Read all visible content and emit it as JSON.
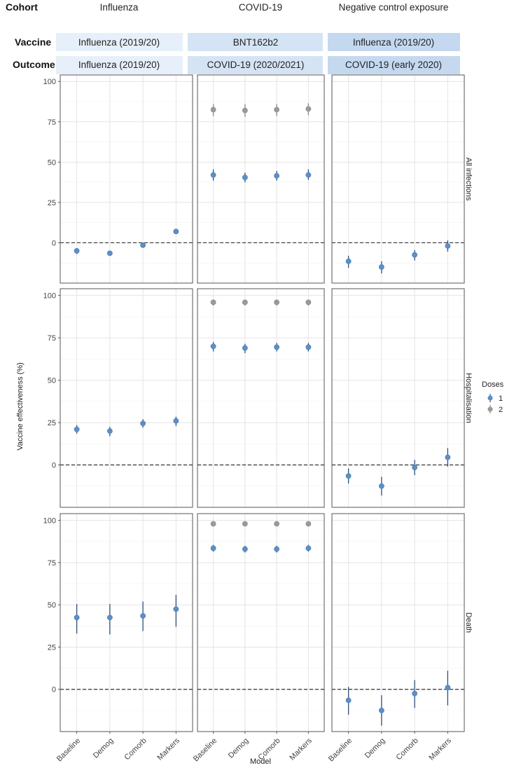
{
  "header": {
    "cohort_label": "Cohort",
    "vaccine_label": "Vaccine",
    "outcome_label": "Outcome",
    "cohorts": [
      "Influenza",
      "COVID-19",
      "Negative control exposure"
    ],
    "vaccines": [
      "Influenza (2019/20)",
      "BNT162b2",
      "Influenza (2019/20)"
    ],
    "outcomes": [
      "Influenza (2019/20)",
      "COVID-19 (2020/2021)",
      "COVID-19 (early 2020)"
    ],
    "colors": {
      "box1": "#e7f0fa",
      "box2": "#d5e4f4",
      "box3": "#c4d9ef"
    }
  },
  "chart_data": {
    "type": "scatter",
    "title": "",
    "xlabel": "Model",
    "ylabel": "Vaccine effectiveness (%)",
    "categories": [
      "Baseline",
      "Demog",
      "Comorb",
      "Markers"
    ],
    "ylim": [
      -25,
      104
    ],
    "yticks": [
      0,
      25,
      50,
      75,
      100
    ],
    "grid": true,
    "legend": {
      "title": "Doses",
      "position": "right",
      "entries": [
        "1",
        "2"
      ]
    },
    "colors": {
      "1": "#5b8fc7",
      "2": "#9a9a9a",
      "line": "#2f4f7a",
      "ref": "#333333"
    },
    "rows": [
      {
        "label": "All infections",
        "panels": [
          {
            "series": [
              {
                "name": "1",
                "values": [
                  -5,
                  -6.5,
                  -1.5,
                  7
                ],
                "lower": [
                  -7,
                  -8,
                  -3,
                  5.5
                ],
                "upper": [
                  -3.5,
                  -5,
                  0,
                  8.5
                ]
              }
            ]
          },
          {
            "series": [
              {
                "name": "1",
                "values": [
                  42,
                  40.5,
                  41.5,
                  42
                ],
                "lower": [
                  38.5,
                  37.5,
                  38.5,
                  39
                ],
                "upper": [
                  45.5,
                  43.5,
                  44.5,
                  45.5
                ]
              },
              {
                "name": "2",
                "values": [
                  82.5,
                  82,
                  82.5,
                  83
                ],
                "lower": [
                  78.5,
                  78,
                  78.5,
                  79
                ],
                "upper": [
                  86,
                  86,
                  86,
                  86.5
                ]
              }
            ]
          },
          {
            "series": [
              {
                "name": "1",
                "values": [
                  -11.5,
                  -15,
                  -7.5,
                  -2
                ],
                "lower": [
                  -15.5,
                  -19,
                  -11,
                  -5.5
                ],
                "upper": [
                  -8,
                  -11.5,
                  -4.5,
                  1.5
                ]
              }
            ]
          }
        ]
      },
      {
        "label": "Hospitalisation",
        "panels": [
          {
            "series": [
              {
                "name": "1",
                "values": [
                  21,
                  20,
                  24.5,
                  26
                ],
                "lower": [
                  18.5,
                  17,
                  22,
                  23
                ],
                "upper": [
                  23.5,
                  22.5,
                  27,
                  28.5
                ]
              }
            ]
          },
          {
            "series": [
              {
                "name": "1",
                "values": [
                  70,
                  69,
                  69.5,
                  69.5
                ],
                "lower": [
                  67,
                  66,
                  67,
                  67
                ],
                "upper": [
                  72.5,
                  71.5,
                  72,
                  72
                ]
              },
              {
                "name": "2",
                "values": [
                  96,
                  96,
                  96,
                  96
                ],
                "lower": [
                  94,
                  94,
                  94,
                  94
                ],
                "upper": [
                  97.5,
                  97.5,
                  97.5,
                  97.5
                ]
              }
            ]
          },
          {
            "series": [
              {
                "name": "1",
                "values": [
                  -6.5,
                  -12.5,
                  -1.5,
                  4.5
                ],
                "lower": [
                  -11,
                  -18,
                  -6,
                  -1
                ],
                "upper": [
                  -2,
                  -7,
                  3,
                  10
                ]
              }
            ]
          }
        ]
      },
      {
        "label": "Death",
        "panels": [
          {
            "series": [
              {
                "name": "1",
                "values": [
                  42.5,
                  42.5,
                  43.5,
                  47.5
                ],
                "lower": [
                  33,
                  32.5,
                  34.5,
                  37
                ],
                "upper": [
                  50.5,
                  50.5,
                  52,
                  56
                ]
              }
            ]
          },
          {
            "series": [
              {
                "name": "1",
                "values": [
                  83.5,
                  83,
                  83,
                  83.5
                ],
                "lower": [
                  81.5,
                  81,
                  81,
                  81.5
                ],
                "upper": [
                  85.5,
                  85,
                  85,
                  85.5
                ]
              },
              {
                "name": "2",
                "values": [
                  98,
                  98,
                  98,
                  98
                ],
                "lower": [
                  97,
                  97,
                  97,
                  97
                ],
                "upper": [
                  99,
                  99,
                  99,
                  99
                ]
              }
            ]
          },
          {
            "series": [
              {
                "name": "1",
                "values": [
                  -6.5,
                  -12.5,
                  -2.5,
                  1
                ],
                "lower": [
                  -15,
                  -21.5,
                  -11,
                  -9.5
                ],
                "upper": [
                  1.5,
                  -3.5,
                  5.5,
                  11
                ]
              }
            ]
          }
        ]
      }
    ]
  }
}
